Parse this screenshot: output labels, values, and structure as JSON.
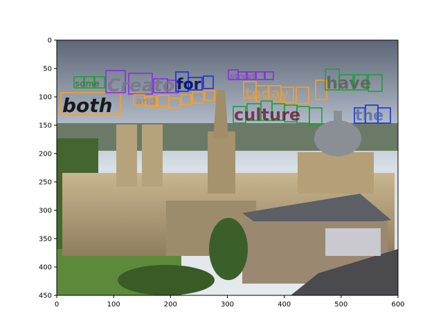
{
  "figure": {
    "x_ticks": [
      "0",
      "100",
      "200",
      "300",
      "400",
      "500",
      "600"
    ],
    "y_ticks": [
      "0",
      "50",
      "100",
      "150",
      "200",
      "250",
      "300",
      "350",
      "400",
      "450"
    ],
    "x_tick_values": [
      0,
      100,
      200,
      300,
      400,
      500,
      600
    ],
    "y_tick_values": [
      0,
      50,
      100,
      150,
      200,
      250,
      300,
      350,
      400,
      450
    ],
    "xlim": [
      0,
      600
    ],
    "ylim": [
      450,
      0
    ],
    "scene": "Oxford skyline photo with synthetic overlaid words"
  },
  "words": [
    {
      "text": "both",
      "color": "#1a1a1a",
      "box_color": "#ff9f1c"
    },
    {
      "text": "Creator",
      "color": "#777788",
      "box_color": "#8a2be2"
    },
    {
      "text": "and",
      "color": "#b98a5a",
      "box_color": "#ff9f1c"
    },
    {
      "text": "culture",
      "color": "#6a1a3a",
      "box_color": "#1f9e3a"
    },
    {
      "text": "today",
      "color": "#d9a050",
      "box_color": "#ff9f1c"
    },
    {
      "text": "have",
      "color": "#556655",
      "box_color": "#1f9e3a"
    },
    {
      "text": "the",
      "color": "#4466aa",
      "box_color": "#1f2fd6"
    },
    {
      "text": "for",
      "color": "#0f1a6a",
      "box_color": "#1f2fd6"
    },
    {
      "text": "street",
      "color": "#8a5ac0",
      "box_color": "#8a2be2"
    },
    {
      "text": "some",
      "color": "#3a7a3a",
      "box_color": "#1f9e3a"
    }
  ]
}
